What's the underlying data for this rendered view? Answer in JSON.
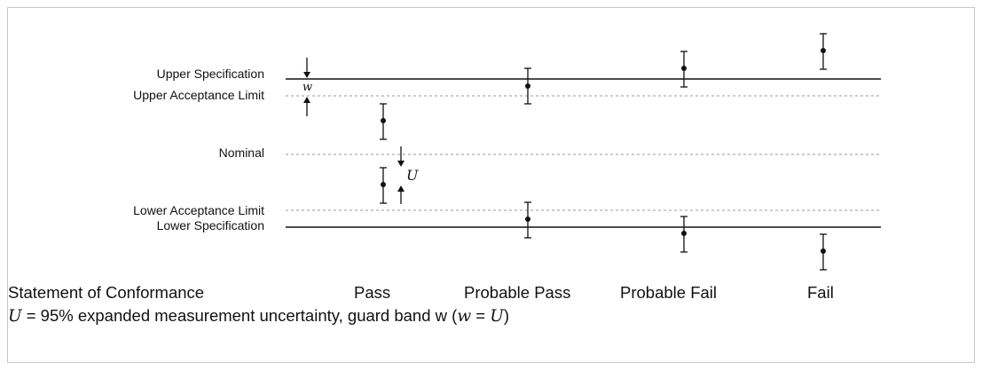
{
  "limits": {
    "upper_specification": "Upper Specification",
    "upper_acceptance_limit": "Upper Acceptance Limit",
    "nominal": "Nominal",
    "lower_acceptance_limit": "Lower Acceptance Limit",
    "lower_specification": "Lower Specification"
  },
  "markers": {
    "guard_band": "w",
    "uncertainty": "U"
  },
  "footer": {
    "statement_label": "Statement of Conformance",
    "categories": [
      "Pass",
      "Probable Pass",
      "Probable Fail",
      "Fail"
    ],
    "note": {
      "sym_u": "U",
      "part1": " = 95% expanded measurement uncertainty, guard band w (",
      "sym_w": "w",
      "part2": " = ",
      "sym_u2": "U",
      "part3": ")"
    }
  },
  "colors": {
    "line": "#111111",
    "dashed": "#9a9a9a",
    "frame": "#c8c8c8",
    "text": "#111111"
  }
}
